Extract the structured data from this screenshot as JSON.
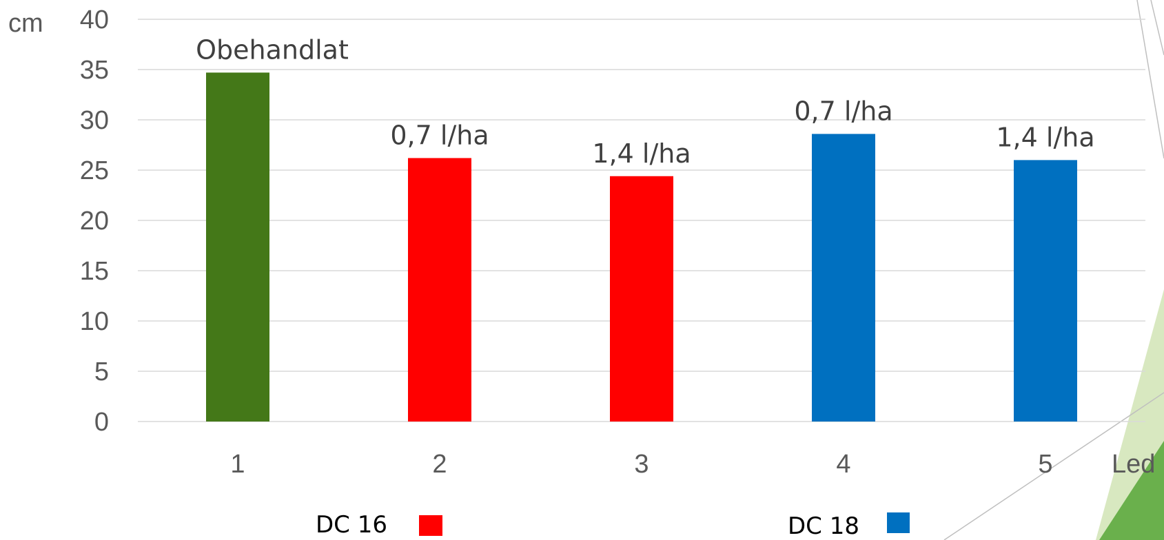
{
  "chart_data": {
    "type": "bar",
    "y_unit_label": "cm",
    "x_unit_label": "Led",
    "categories": [
      "1",
      "2",
      "3",
      "4",
      "5"
    ],
    "values": [
      34.7,
      26.2,
      24.4,
      28.6,
      26.0
    ],
    "data_labels": [
      "Obehandlat",
      "0,7 l/ha",
      "1,4 l/ha",
      "0,7 l/ha",
      "1,4 l/ha"
    ],
    "bar_colors": [
      "#447818",
      "#ff0000",
      "#ff0000",
      "#0070c0",
      "#0070c0"
    ],
    "ylim": [
      0,
      40
    ],
    "yticks": [
      0,
      5,
      10,
      15,
      20,
      25,
      30,
      35,
      40
    ],
    "grid": true,
    "legend": [
      {
        "label": "DC 16",
        "color": "#ff0000"
      },
      {
        "label": "DC 18",
        "color": "#0070c0"
      }
    ],
    "legend_position": "bottom"
  },
  "decoration": {
    "accent_light": "#d8e8c0",
    "accent_dark": "#6ab04c",
    "line_color": "#bfbfbf"
  }
}
